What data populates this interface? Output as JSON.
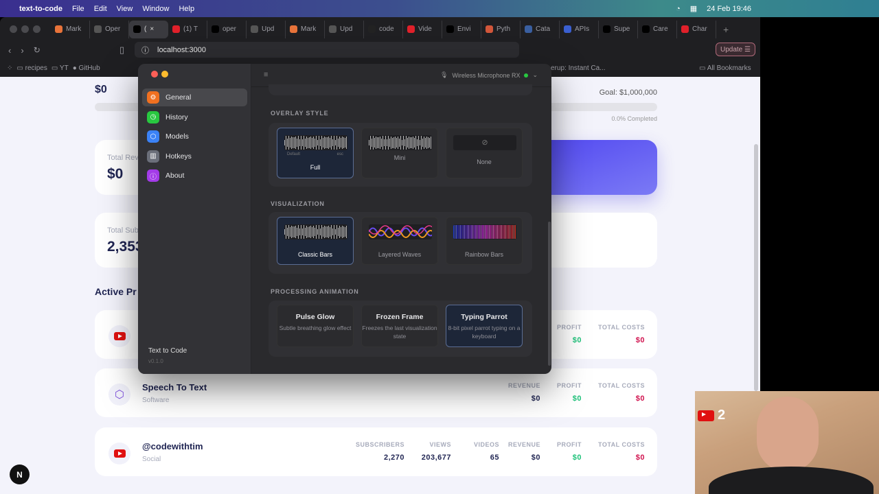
{
  "menubar": {
    "app": "text-to-code",
    "items": [
      "File",
      "Edit",
      "View",
      "Window",
      "Help"
    ],
    "datetime": "24 Feb 19:46"
  },
  "browser": {
    "tabs": [
      {
        "label": "Mark",
        "color": "#e8733a"
      },
      {
        "label": "Oper",
        "color": "#555"
      },
      {
        "label": "(",
        "color": "#000",
        "active": true
      },
      {
        "label": "(1) T",
        "color": "#e0202a"
      },
      {
        "label": "oper",
        "color": "#000"
      },
      {
        "label": "Upd",
        "color": "#555"
      },
      {
        "label": "Mark",
        "color": "#e8733a"
      },
      {
        "label": "Upd",
        "color": "#555"
      },
      {
        "label": "code",
        "color": "#222"
      },
      {
        "label": "Vide",
        "color": "#e0202a"
      },
      {
        "label": "Envi",
        "color": "#000"
      },
      {
        "label": "Pyth",
        "color": "#d2563a"
      },
      {
        "label": "Cata",
        "color": "#3a5fa0"
      },
      {
        "label": "APIs",
        "color": "#3a5fd0"
      },
      {
        "label": "Supe",
        "color": "#000"
      },
      {
        "label": "Care",
        "color": "#000"
      },
      {
        "label": "Char",
        "color": "#e0202a"
      }
    ],
    "url": "localhost:3000",
    "update_label": "Update",
    "bookmarks": [
      "recipes",
      "YT",
      "GitHub"
    ],
    "bookmark_trailing": "erup: Instant Ca...",
    "all_bookmarks": "All Bookmarks"
  },
  "dashboard": {
    "top_value": "$0",
    "goal": "Goal: $1,000,000",
    "progress_percent": 0,
    "completed": "0.0% Completed",
    "total_revenue_label": "Total Rev",
    "total_revenue": "$0",
    "total_subs_label": "Total Sub",
    "total_subs": "2,353",
    "active_projects": "Active Pr",
    "projects": [
      {
        "name": "",
        "type": "",
        "icon": "youtube-icon",
        "cols": [
          {
            "label": "PROFIT",
            "value": "$0",
            "color": "#1fc27a"
          },
          {
            "label": "TOTAL COSTS",
            "value": "$0",
            "color": "#d1134f"
          }
        ]
      },
      {
        "name": "Speech To Text",
        "type": "Software",
        "icon": "box-icon",
        "cols": [
          {
            "label": "REVENUE",
            "value": "$0",
            "color": "#1f2452"
          },
          {
            "label": "PROFIT",
            "value": "$0",
            "color": "#1fc27a"
          },
          {
            "label": "TOTAL COSTS",
            "value": "$0",
            "color": "#d1134f"
          }
        ]
      },
      {
        "name": "@codewithtim",
        "type": "Social",
        "icon": "youtube-icon",
        "cols": [
          {
            "label": "SUBSCRIBERS",
            "value": "2,270",
            "color": "#1f2452"
          },
          {
            "label": "VIEWS",
            "value": "203,677",
            "color": "#1f2452"
          },
          {
            "label": "VIDEOS",
            "value": "65",
            "color": "#1f2452"
          },
          {
            "label": "REVENUE",
            "value": "$0",
            "color": "#1f2452"
          },
          {
            "label": "PROFIT",
            "value": "$0",
            "color": "#1fc27a"
          },
          {
            "label": "TOTAL COSTS",
            "value": "$0",
            "color": "#d1134f"
          }
        ]
      }
    ]
  },
  "settings": {
    "nav": [
      {
        "label": "General",
        "color": "#f07020",
        "icon": "gear-icon",
        "glyph": "⚙"
      },
      {
        "label": "History",
        "color": "#28c840",
        "icon": "clock-icon",
        "glyph": "◷"
      },
      {
        "label": "Models",
        "color": "#3b82f6",
        "icon": "cube-icon",
        "glyph": "⬡"
      },
      {
        "label": "Hotkeys",
        "color": "#6b6f7a",
        "icon": "keyboard-icon",
        "glyph": "▥"
      },
      {
        "label": "About",
        "color": "#a33be8",
        "icon": "info-icon",
        "glyph": "ⓘ"
      }
    ],
    "app_name": "Text to Code",
    "version": "v0.1.0",
    "microphone": "Wireless Microphone RX",
    "overlay_title": "OVERLAY STYLE",
    "overlay": [
      {
        "label": "Full",
        "hint_left": "Default",
        "hint_right": "esc",
        "selected": true
      },
      {
        "label": "Mini"
      },
      {
        "label": "None"
      }
    ],
    "viz_title": "VISUALIZATION",
    "viz": [
      {
        "label": "Classic Bars",
        "selected": true
      },
      {
        "label": "Layered Waves"
      },
      {
        "label": "Rainbow Bars"
      }
    ],
    "anim_title": "PROCESSING ANIMATION",
    "anim": [
      {
        "label": "Pulse Glow",
        "desc": "Subtle breathing glow effect"
      },
      {
        "label": "Frozen Frame",
        "desc": "Freezes the last visualization state"
      },
      {
        "label": "Typing Parrot",
        "desc": "8-bit pixel parrot typing on a keyboard",
        "selected": true
      }
    ]
  },
  "webcam": {
    "badge": "2"
  }
}
